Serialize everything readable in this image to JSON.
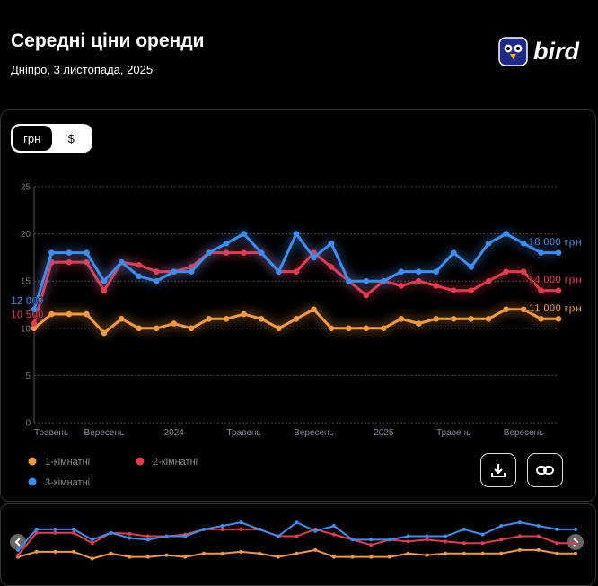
{
  "header": {
    "title": "Середні ціни оренди",
    "subtitle": "Дніпро, 3 листопада, 2025",
    "logo": "bird"
  },
  "currency_toggle": [
    "грн",
    "$"
  ],
  "chart_data": {
    "type": "line",
    "categories": [
      "Травень",
      null,
      null,
      null,
      "Вересень",
      null,
      null,
      null,
      "2024",
      null,
      null,
      null,
      "Травень",
      null,
      null,
      null,
      "Вересень",
      null,
      null,
      null,
      "2025",
      null,
      null,
      null,
      "Травень",
      null,
      null,
      null,
      "Вересень",
      null,
      null
    ],
    "series": [
      {
        "name": "1-кімнатні",
        "color": "#f39a3a",
        "values": [
          10,
          11.5,
          11.5,
          11.5,
          9.5,
          11,
          10,
          10,
          10.5,
          10,
          11,
          11,
          11.5,
          11,
          10,
          11,
          12,
          10,
          10,
          10,
          10,
          11,
          10.5,
          11,
          11,
          11,
          11,
          12,
          12,
          11,
          11
        ],
        "value_labels": [
          null,
          null,
          null,
          null,
          null,
          null,
          null,
          null,
          null,
          null,
          null,
          null,
          null,
          null,
          null,
          null,
          null,
          null,
          null,
          null,
          null,
          null,
          null,
          null,
          null,
          null,
          null,
          null,
          null,
          null,
          "11 000 грн"
        ]
      },
      {
        "name": "2-кімнатні",
        "color": "#e8394f",
        "values": [
          10.5,
          17,
          17,
          17,
          14,
          17,
          16.7,
          16,
          16,
          16.5,
          18,
          18,
          18,
          18,
          16,
          16,
          18,
          16.5,
          15,
          13.5,
          15,
          14.5,
          15,
          14.5,
          14,
          14,
          15,
          16,
          16,
          14,
          14
        ],
        "value_labels": [
          "10 500",
          null,
          null,
          null,
          null,
          null,
          null,
          null,
          null,
          null,
          null,
          null,
          null,
          null,
          null,
          null,
          null,
          null,
          null,
          null,
          null,
          null,
          null,
          null,
          null,
          null,
          null,
          null,
          null,
          null,
          "14 000 грн"
        ]
      },
      {
        "name": "3-кімнатні",
        "color": "#3a8ff0",
        "values": [
          12,
          18,
          18,
          18,
          15,
          17,
          15.5,
          15,
          16,
          16,
          18,
          19,
          20,
          18,
          16,
          20,
          17.5,
          19,
          15,
          15,
          15,
          16,
          16,
          16,
          18,
          16.5,
          19,
          20,
          19,
          18,
          18
        ],
        "value_labels": [
          "12 000",
          null,
          null,
          null,
          null,
          null,
          null,
          null,
          null,
          null,
          null,
          null,
          null,
          null,
          null,
          null,
          null,
          null,
          null,
          null,
          null,
          null,
          null,
          null,
          null,
          null,
          null,
          null,
          null,
          null,
          "18 000 грн"
        ]
      }
    ],
    "ylim": [
      0,
      25
    ],
    "yticks": [
      0,
      5,
      10,
      15,
      20,
      25
    ],
    "grid": true
  }
}
